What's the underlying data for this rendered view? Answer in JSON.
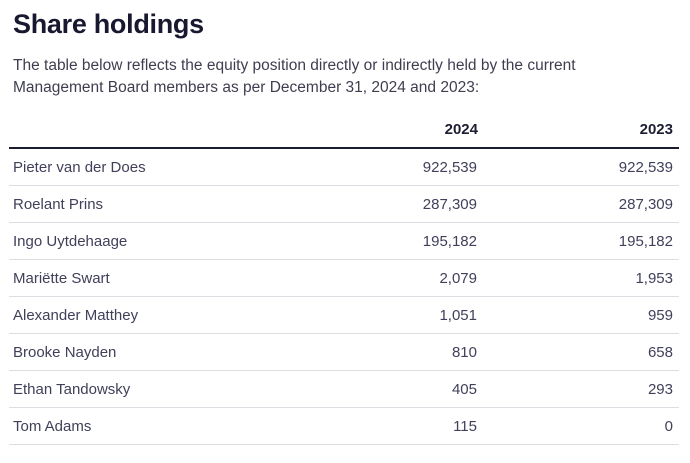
{
  "page": {
    "title": "Share holdings",
    "intro": "The table below reflects the equity position directly or indirectly held by the current Management Board members as per December 31, 2024 and 2023:"
  },
  "table": {
    "columns": [
      "",
      "2024",
      "2023"
    ],
    "rows": [
      {
        "name": "Pieter van der Does",
        "y2024": "922,539",
        "y2023": "922,539"
      },
      {
        "name": "Roelant Prins",
        "y2024": "287,309",
        "y2023": "287,309"
      },
      {
        "name": "Ingo Uytdehaage",
        "y2024": "195,182",
        "y2023": "195,182"
      },
      {
        "name": "Mariëtte Swart",
        "y2024": "2,079",
        "y2023": "1,953"
      },
      {
        "name": "Alexander Matthey",
        "y2024": "1,051",
        "y2023": "959"
      },
      {
        "name": "Brooke Nayden",
        "y2024": "810",
        "y2023": "658"
      },
      {
        "name": "Ethan Tandowsky",
        "y2024": "405",
        "y2023": "293"
      },
      {
        "name": "Tom Adams",
        "y2024": "115",
        "y2023": "0"
      }
    ]
  },
  "colors": {
    "title_text": "#181830",
    "body_text": "#3e3e50",
    "header_rule": "#1c1c30",
    "row_divider": "#dcdce2",
    "background": "#ffffff"
  }
}
